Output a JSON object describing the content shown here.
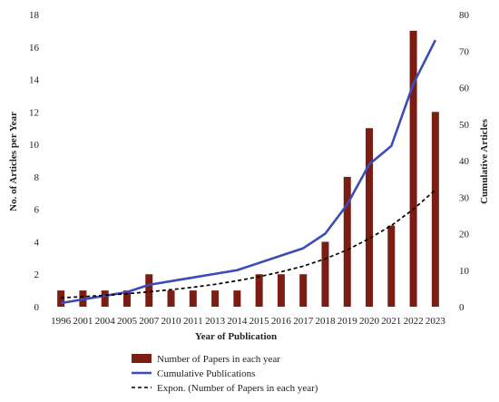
{
  "chart_data": {
    "type": "bar",
    "xlabel": "Year of Publication",
    "ylabel": "No. of Articles per Year",
    "y2label": "Cumulative Articles",
    "categories": [
      "1996",
      "2001",
      "2004",
      "2005",
      "2007",
      "2010",
      "2011",
      "2013",
      "2014",
      "2015",
      "2016",
      "2017",
      "2018",
      "2019",
      "2020",
      "2021",
      "2022",
      "2023"
    ],
    "ylim": [
      0,
      18
    ],
    "y2lim": [
      0,
      80
    ],
    "yticks": [
      0,
      2,
      4,
      6,
      8,
      10,
      12,
      14,
      16,
      18
    ],
    "y2ticks": [
      0,
      10,
      20,
      30,
      40,
      50,
      60,
      70,
      80
    ],
    "series": [
      {
        "name": "Number of Papers in each year",
        "kind": "bar",
        "axis": "left",
        "color": "#7b1d12",
        "values": [
          1,
          1,
          1,
          1,
          2,
          1,
          1,
          1,
          1,
          2,
          2,
          2,
          4,
          8,
          11,
          5,
          17,
          12
        ]
      },
      {
        "name": "Cumulative Publications",
        "kind": "line",
        "axis": "right",
        "color": "#3b4cb8",
        "values": [
          1,
          2,
          3,
          4,
          6,
          7,
          8,
          9,
          10,
          12,
          14,
          16,
          20,
          28,
          39,
          44,
          61,
          73
        ]
      },
      {
        "name": "Expon. (Number of Papers in each year)",
        "kind": "trend",
        "axis": "left",
        "color": "#000000",
        "dash": "dashed",
        "values": [
          0.55,
          0.62,
          0.7,
          0.8,
          0.92,
          1.05,
          1.2,
          1.38,
          1.6,
          1.85,
          2.15,
          2.5,
          2.95,
          3.5,
          4.2,
          5.0,
          6.0,
          7.2
        ]
      }
    ],
    "legend": "bottom-center",
    "grid": false
  }
}
